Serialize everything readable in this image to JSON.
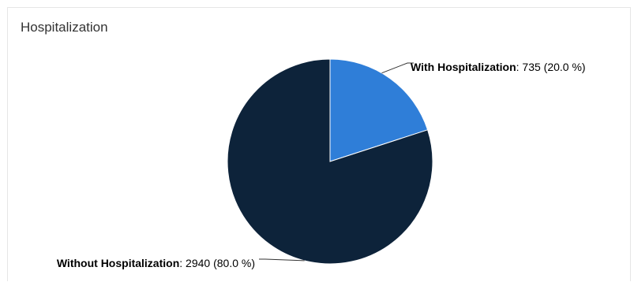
{
  "panel": {
    "title": "Hospitalization"
  },
  "chart_data": {
    "type": "pie",
    "title": "Hospitalization",
    "slices": [
      {
        "name": "With Hospitalization",
        "value": 735,
        "percent": "20.0 %",
        "value_text": ": 735 (20.0 %)",
        "color": "#2f7ed8"
      },
      {
        "name": "Without Hospitalization",
        "value": 2940,
        "percent": "80.0 %",
        "value_text": ": 2940 (80.0 %)",
        "color": "#0d233a"
      }
    ],
    "legend": "none",
    "data_labels": "outside-with-connectors"
  }
}
